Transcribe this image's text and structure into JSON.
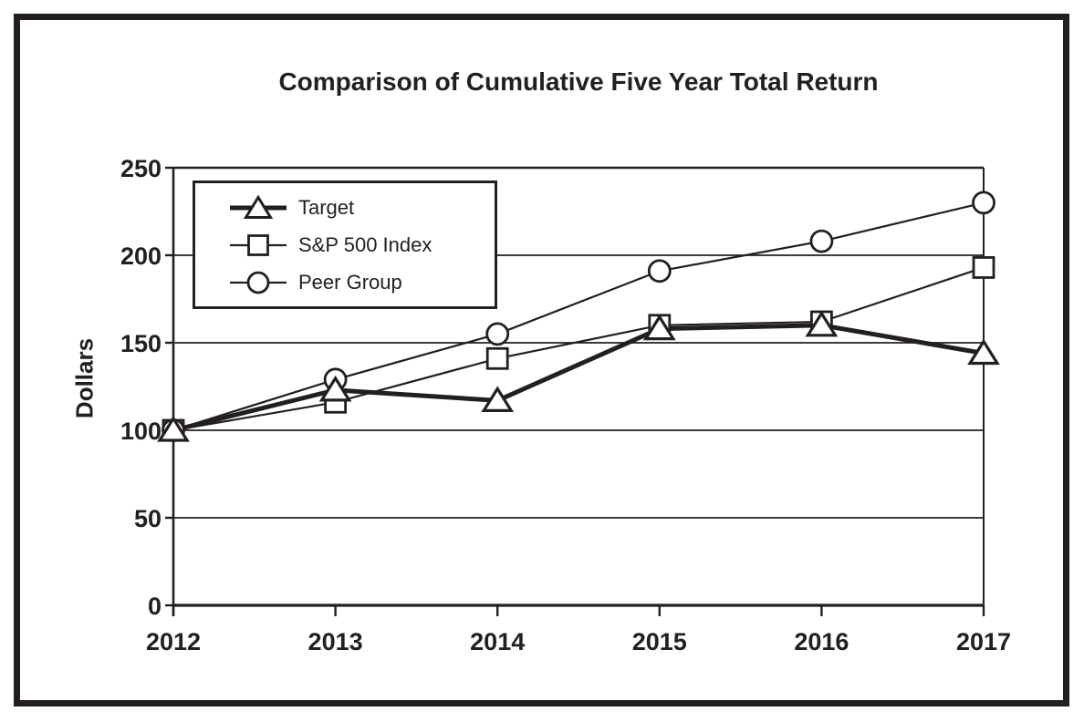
{
  "title": "Comparison of Cumulative Five Year Total Return",
  "chart_data": {
    "type": "line",
    "title": "Comparison of Cumulative Five Year Total Return",
    "categories": [
      "2012",
      "2013",
      "2014",
      "2015",
      "2016",
      "2017"
    ],
    "series": [
      {
        "name": "Target",
        "marker": "triangle",
        "line": "thick",
        "values": [
          100,
          123,
          117,
          158,
          160,
          144
        ]
      },
      {
        "name": "S&P 500 Index",
        "marker": "square",
        "line": "thin",
        "values": [
          100,
          116,
          141,
          160,
          162,
          193
        ]
      },
      {
        "name": "Peer Group",
        "marker": "circle",
        "line": "thin",
        "values": [
          100,
          129,
          155,
          191,
          208,
          230
        ]
      }
    ],
    "xlabel": "",
    "ylabel": "Dollars",
    "ylim": [
      0,
      250
    ],
    "y_ticks": [
      0,
      50,
      100,
      150,
      200,
      250
    ],
    "grid": true,
    "legend_position": "upper-left",
    "ink_color": "#231f20",
    "background": "#ffffff"
  }
}
